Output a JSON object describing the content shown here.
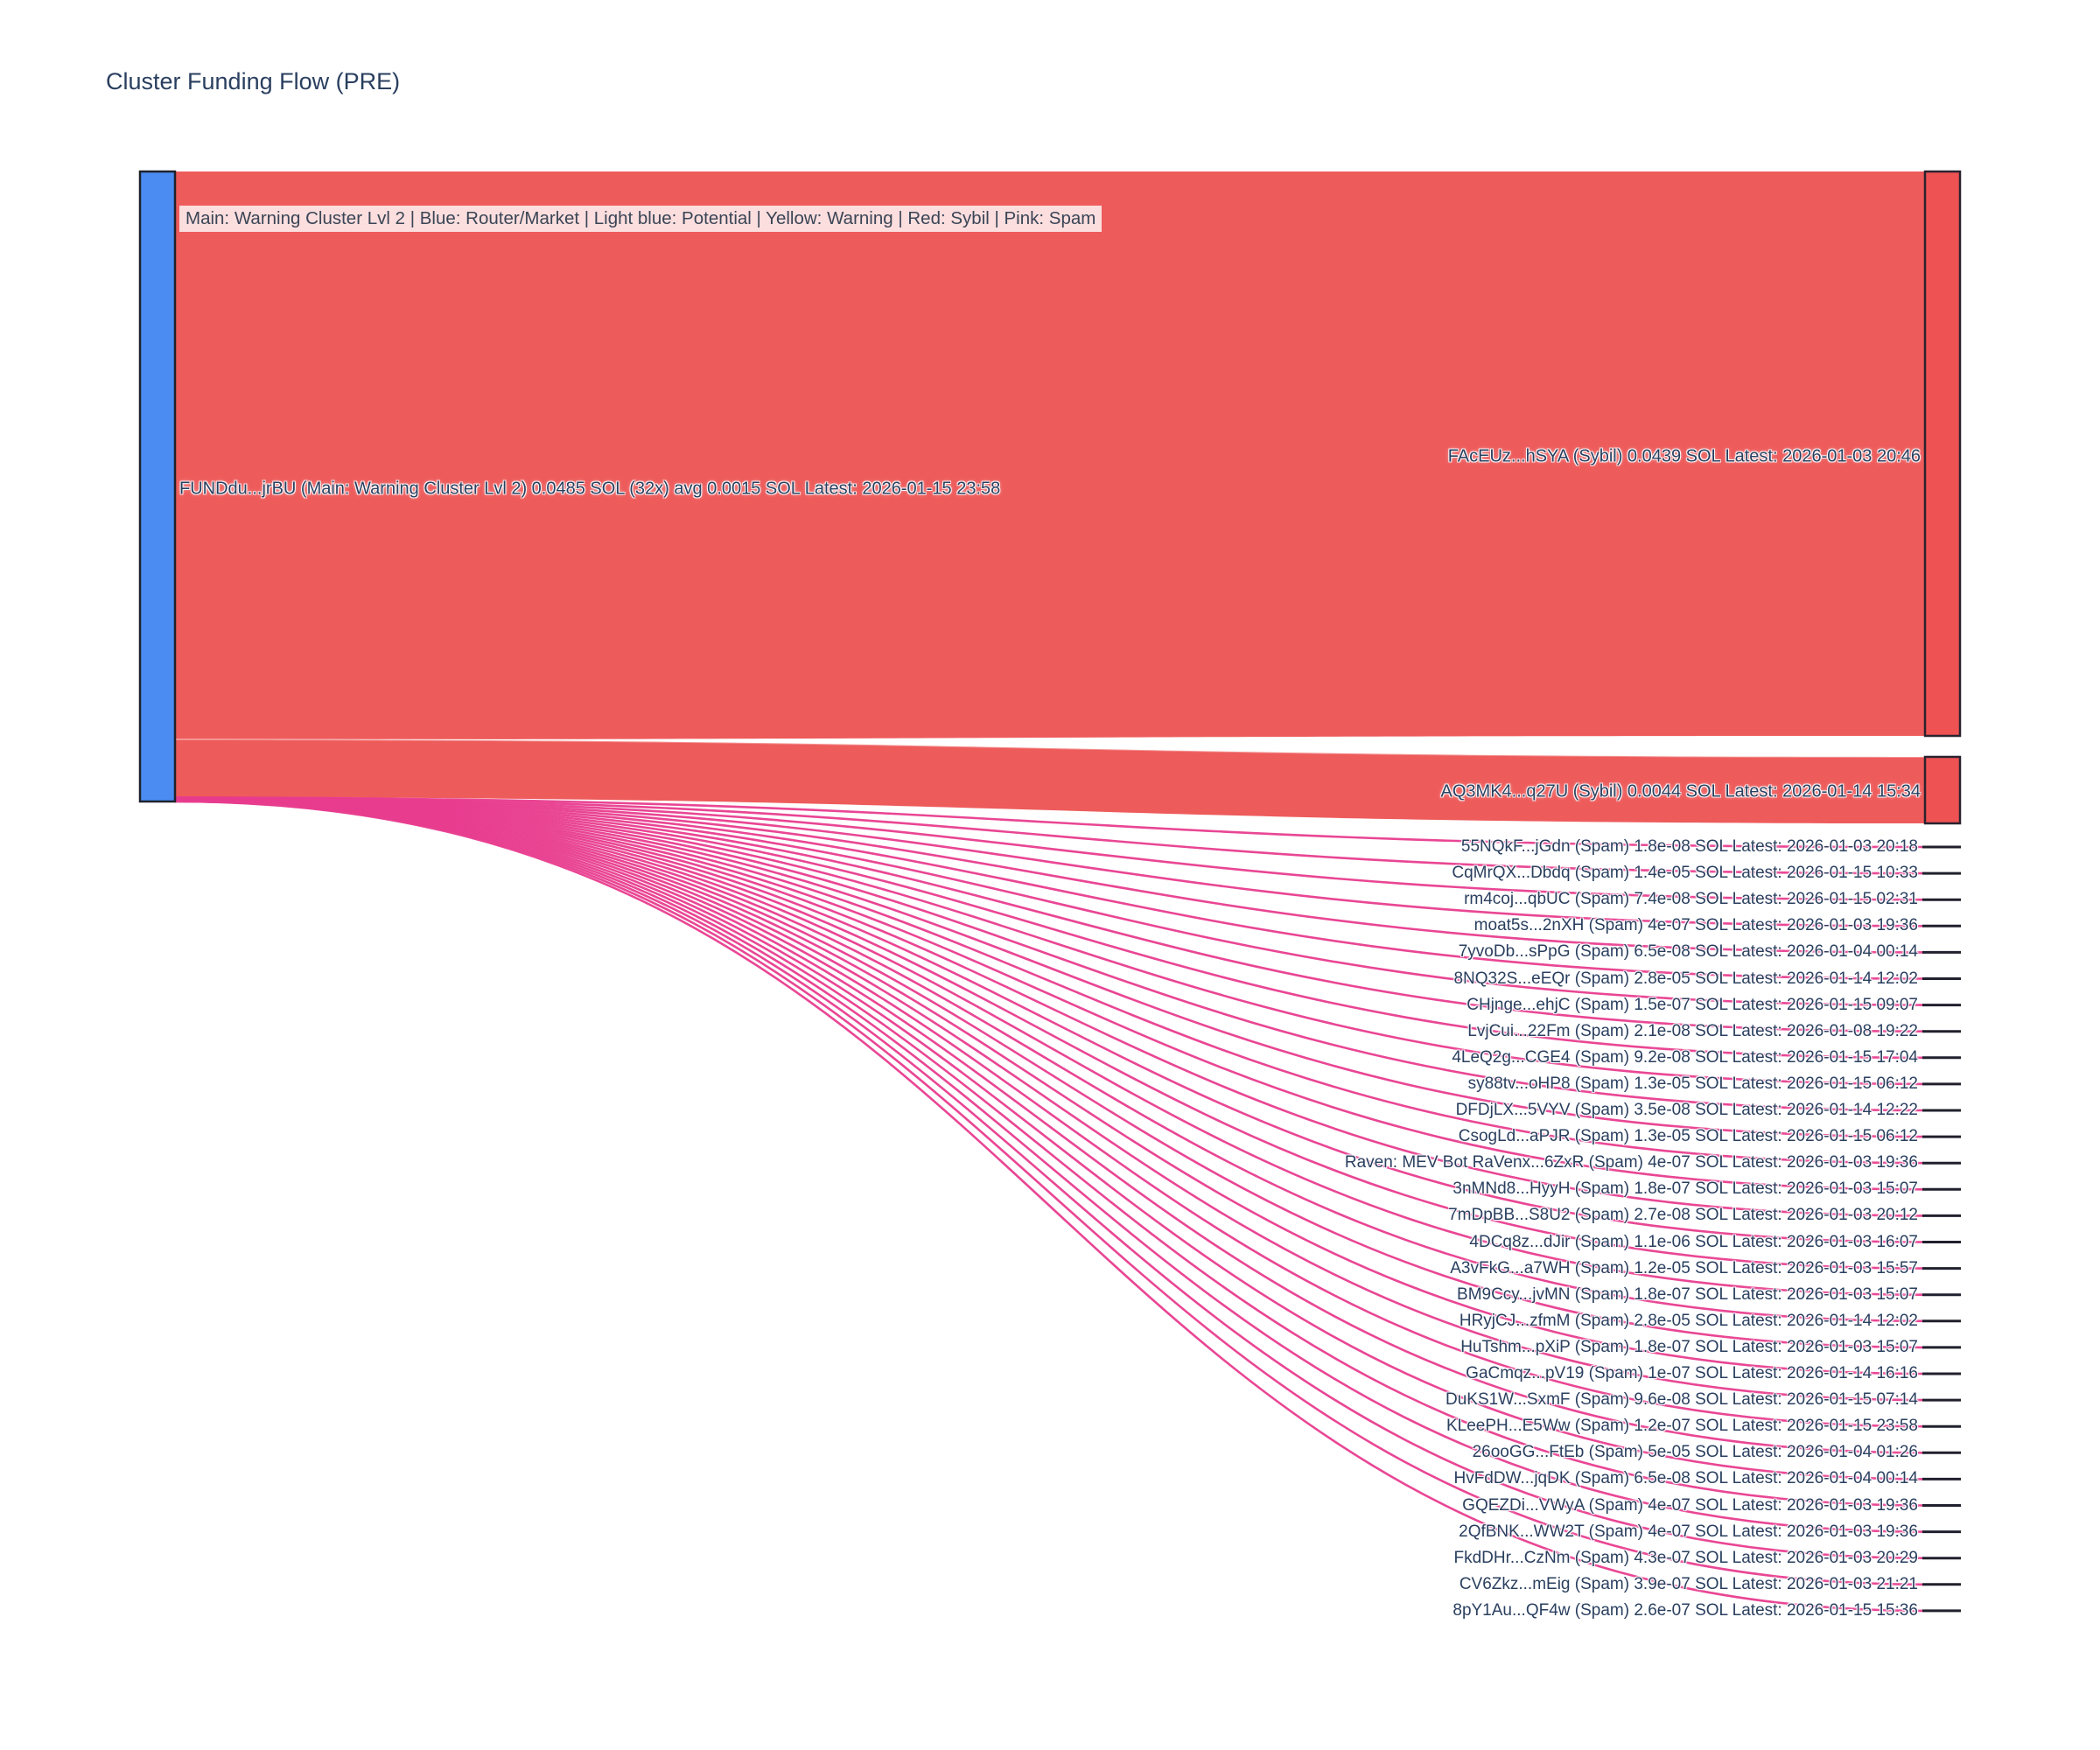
{
  "title": "Cluster Funding Flow (PRE)",
  "legend": "Main: Warning Cluster Lvl 2  |  Blue: Router/Market | Light blue: Potential | Yellow: Warning | Red: Sybil | Pink: Spam",
  "colors": {
    "source_node": "#4a8cf2",
    "source_node_border": "#1e222b",
    "sybil_node": "#ee5253",
    "sybil_link": "#ed4f4f",
    "node_border": "#2b2230",
    "spam_link": "#e83c8e",
    "spam_node_dash": "#20202e",
    "text": "#2a3f5f",
    "legend_bg": "rgba(255,255,255,0.8)"
  },
  "chart_data": {
    "type": "sankey",
    "title": "Cluster Funding Flow (PRE)",
    "source": {
      "name": "FUNDdu...jrBU",
      "category": "Main: Warning Cluster Lvl 2",
      "total_sol": "0.0485",
      "tx_count": "32",
      "avg_sol": "0.0015",
      "latest": "2026-01-15 23:58"
    },
    "links": [
      {
        "name": "FAcEUz...hSYA",
        "category": "Sybil",
        "sol": "0.0439",
        "latest": "2026-01-03 20:46"
      },
      {
        "name": "AQ3MK4...q27U",
        "category": "Sybil",
        "sol": "0.0044",
        "latest": "2026-01-14 15:34"
      },
      {
        "name": "55NQkF...jGdn",
        "category": "Spam",
        "sol": "1.8e-08",
        "latest": "2026-01-03 20:18"
      },
      {
        "name": "CqMrQX...Dbdq",
        "category": "Spam",
        "sol": "1.4e-05",
        "latest": "2026-01-15 10:33"
      },
      {
        "name": "rm4coj...qbUC",
        "category": "Spam",
        "sol": "7.4e-08",
        "latest": "2026-01-15 02:31"
      },
      {
        "name": "moat5s...2nXH",
        "category": "Spam",
        "sol": "4e-07",
        "latest": "2026-01-03 19:36"
      },
      {
        "name": "7yvoDb...sPpG",
        "category": "Spam",
        "sol": "6.5e-08",
        "latest": "2026-01-04 00:14"
      },
      {
        "name": "8NQ32S...eEQr",
        "category": "Spam",
        "sol": "2.8e-05",
        "latest": "2026-01-14 12:02"
      },
      {
        "name": "CHjnge...ehjC",
        "category": "Spam",
        "sol": "1.5e-07",
        "latest": "2026-01-15 09:07"
      },
      {
        "name": "LvjCui...22Fm",
        "category": "Spam",
        "sol": "2.1e-08",
        "latest": "2026-01-08 19:22"
      },
      {
        "name": "4LeQ2g...CGE4",
        "category": "Spam",
        "sol": "9.2e-08",
        "latest": "2026-01-15 17:04"
      },
      {
        "name": "sy88tv...oHP8",
        "category": "Spam",
        "sol": "1.3e-05",
        "latest": "2026-01-15 06:12"
      },
      {
        "name": "DFDjLX...5VYV",
        "category": "Spam",
        "sol": "3.5e-08",
        "latest": "2026-01-14 12:22"
      },
      {
        "name": "CsogLd...aPJR",
        "category": "Spam",
        "sol": "1.3e-05",
        "latest": "2026-01-15 06:12"
      },
      {
        "name": "Raven: MEV Bot RaVenx...6ZxR",
        "category": "Spam",
        "sol": "4e-07",
        "latest": "2026-01-03 19:36"
      },
      {
        "name": "3nMNd8...HyyH",
        "category": "Spam",
        "sol": "1.8e-07",
        "latest": "2026-01-03 15:07"
      },
      {
        "name": "7mDpBB...S8U2",
        "category": "Spam",
        "sol": "2.7e-08",
        "latest": "2026-01-03 20:12"
      },
      {
        "name": "4DCq8z...dJir",
        "category": "Spam",
        "sol": "1.1e-06",
        "latest": "2026-01-03 16:07"
      },
      {
        "name": "A3vFkG...a7WH",
        "category": "Spam",
        "sol": "1.2e-05",
        "latest": "2026-01-03 15:57"
      },
      {
        "name": "BM9Ccy...jvMN",
        "category": "Spam",
        "sol": "1.8e-07",
        "latest": "2026-01-03 15:07"
      },
      {
        "name": "HRyjCJ...zfmM",
        "category": "Spam",
        "sol": "2.8e-05",
        "latest": "2026-01-14 12:02"
      },
      {
        "name": "HuTshm...pXiP",
        "category": "Spam",
        "sol": "1.8e-07",
        "latest": "2026-01-03 15:07"
      },
      {
        "name": "GaCmqz...pV19",
        "category": "Spam",
        "sol": "1e-07",
        "latest": "2026-01-14 16:16"
      },
      {
        "name": "DuKS1W...SxmF",
        "category": "Spam",
        "sol": "9.6e-08",
        "latest": "2026-01-15 07:14"
      },
      {
        "name": "KLeePH...E5Ww",
        "category": "Spam",
        "sol": "1.2e-07",
        "latest": "2026-01-15 23:58"
      },
      {
        "name": "26ooGG...FtEb",
        "category": "Spam",
        "sol": "5e-05",
        "latest": "2026-01-04 01:26"
      },
      {
        "name": "HvFdDW...jqDK",
        "category": "Spam",
        "sol": "6.5e-08",
        "latest": "2026-01-04 00:14"
      },
      {
        "name": "GQEZDi...VWyA",
        "category": "Spam",
        "sol": "4e-07",
        "latest": "2026-01-03 19:36"
      },
      {
        "name": "2QfBNK...WW2T",
        "category": "Spam",
        "sol": "4e-07",
        "latest": "2026-01-03 19:36"
      },
      {
        "name": "FkdDHr...CzNm",
        "category": "Spam",
        "sol": "4.3e-07",
        "latest": "2026-01-03 20:29"
      },
      {
        "name": "CV6Zkz...mEig",
        "category": "Spam",
        "sol": "3.9e-07",
        "latest": "2026-01-03 21:21"
      },
      {
        "name": "8pY1Au...QF4w",
        "category": "Spam",
        "sol": "2.6e-07",
        "latest": "2026-01-15 15:36"
      }
    ]
  }
}
